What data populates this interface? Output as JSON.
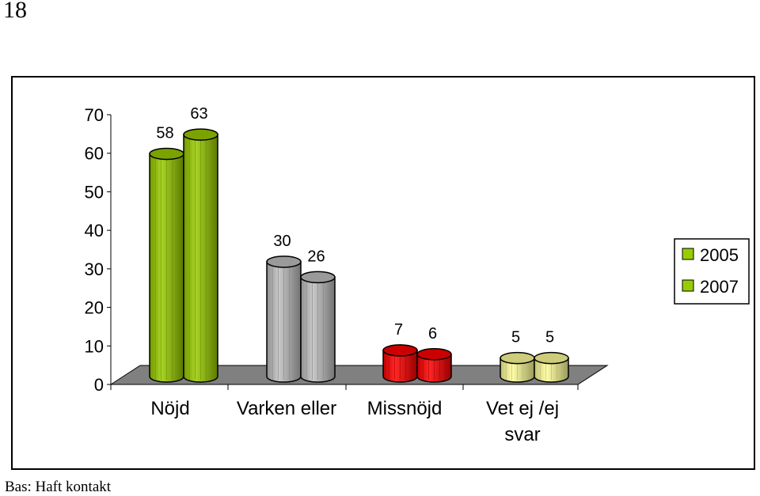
{
  "page": {
    "number": "18",
    "footnote": "Bas: Haft kontakt"
  },
  "chart_data": {
    "type": "bar",
    "categories": [
      "Nöjd",
      "Varken eller",
      "Missnöjd",
      "Vet ej /ej svar"
    ],
    "category_lines": [
      [
        "Nöjd"
      ],
      [
        "Varken eller"
      ],
      [
        "Missnöjd"
      ],
      [
        "Vet ej /ej",
        "svar"
      ]
    ],
    "series": [
      {
        "name": "2005",
        "values": [
          58,
          30,
          7,
          5
        ]
      },
      {
        "name": "2007",
        "values": [
          63,
          26,
          6,
          5
        ]
      }
    ],
    "yticks": [
      "0",
      "10",
      "20",
      "30",
      "40",
      "50",
      "60",
      "70"
    ],
    "ylim": [
      0,
      70
    ],
    "colors_by_category": [
      "#99cc00",
      "#c0c0c0",
      "#ff0000",
      "#ffff99"
    ],
    "legend_color": "#99cc00",
    "legend_position": "right",
    "floor_color": "#808080",
    "style": "3d-cylinder"
  }
}
